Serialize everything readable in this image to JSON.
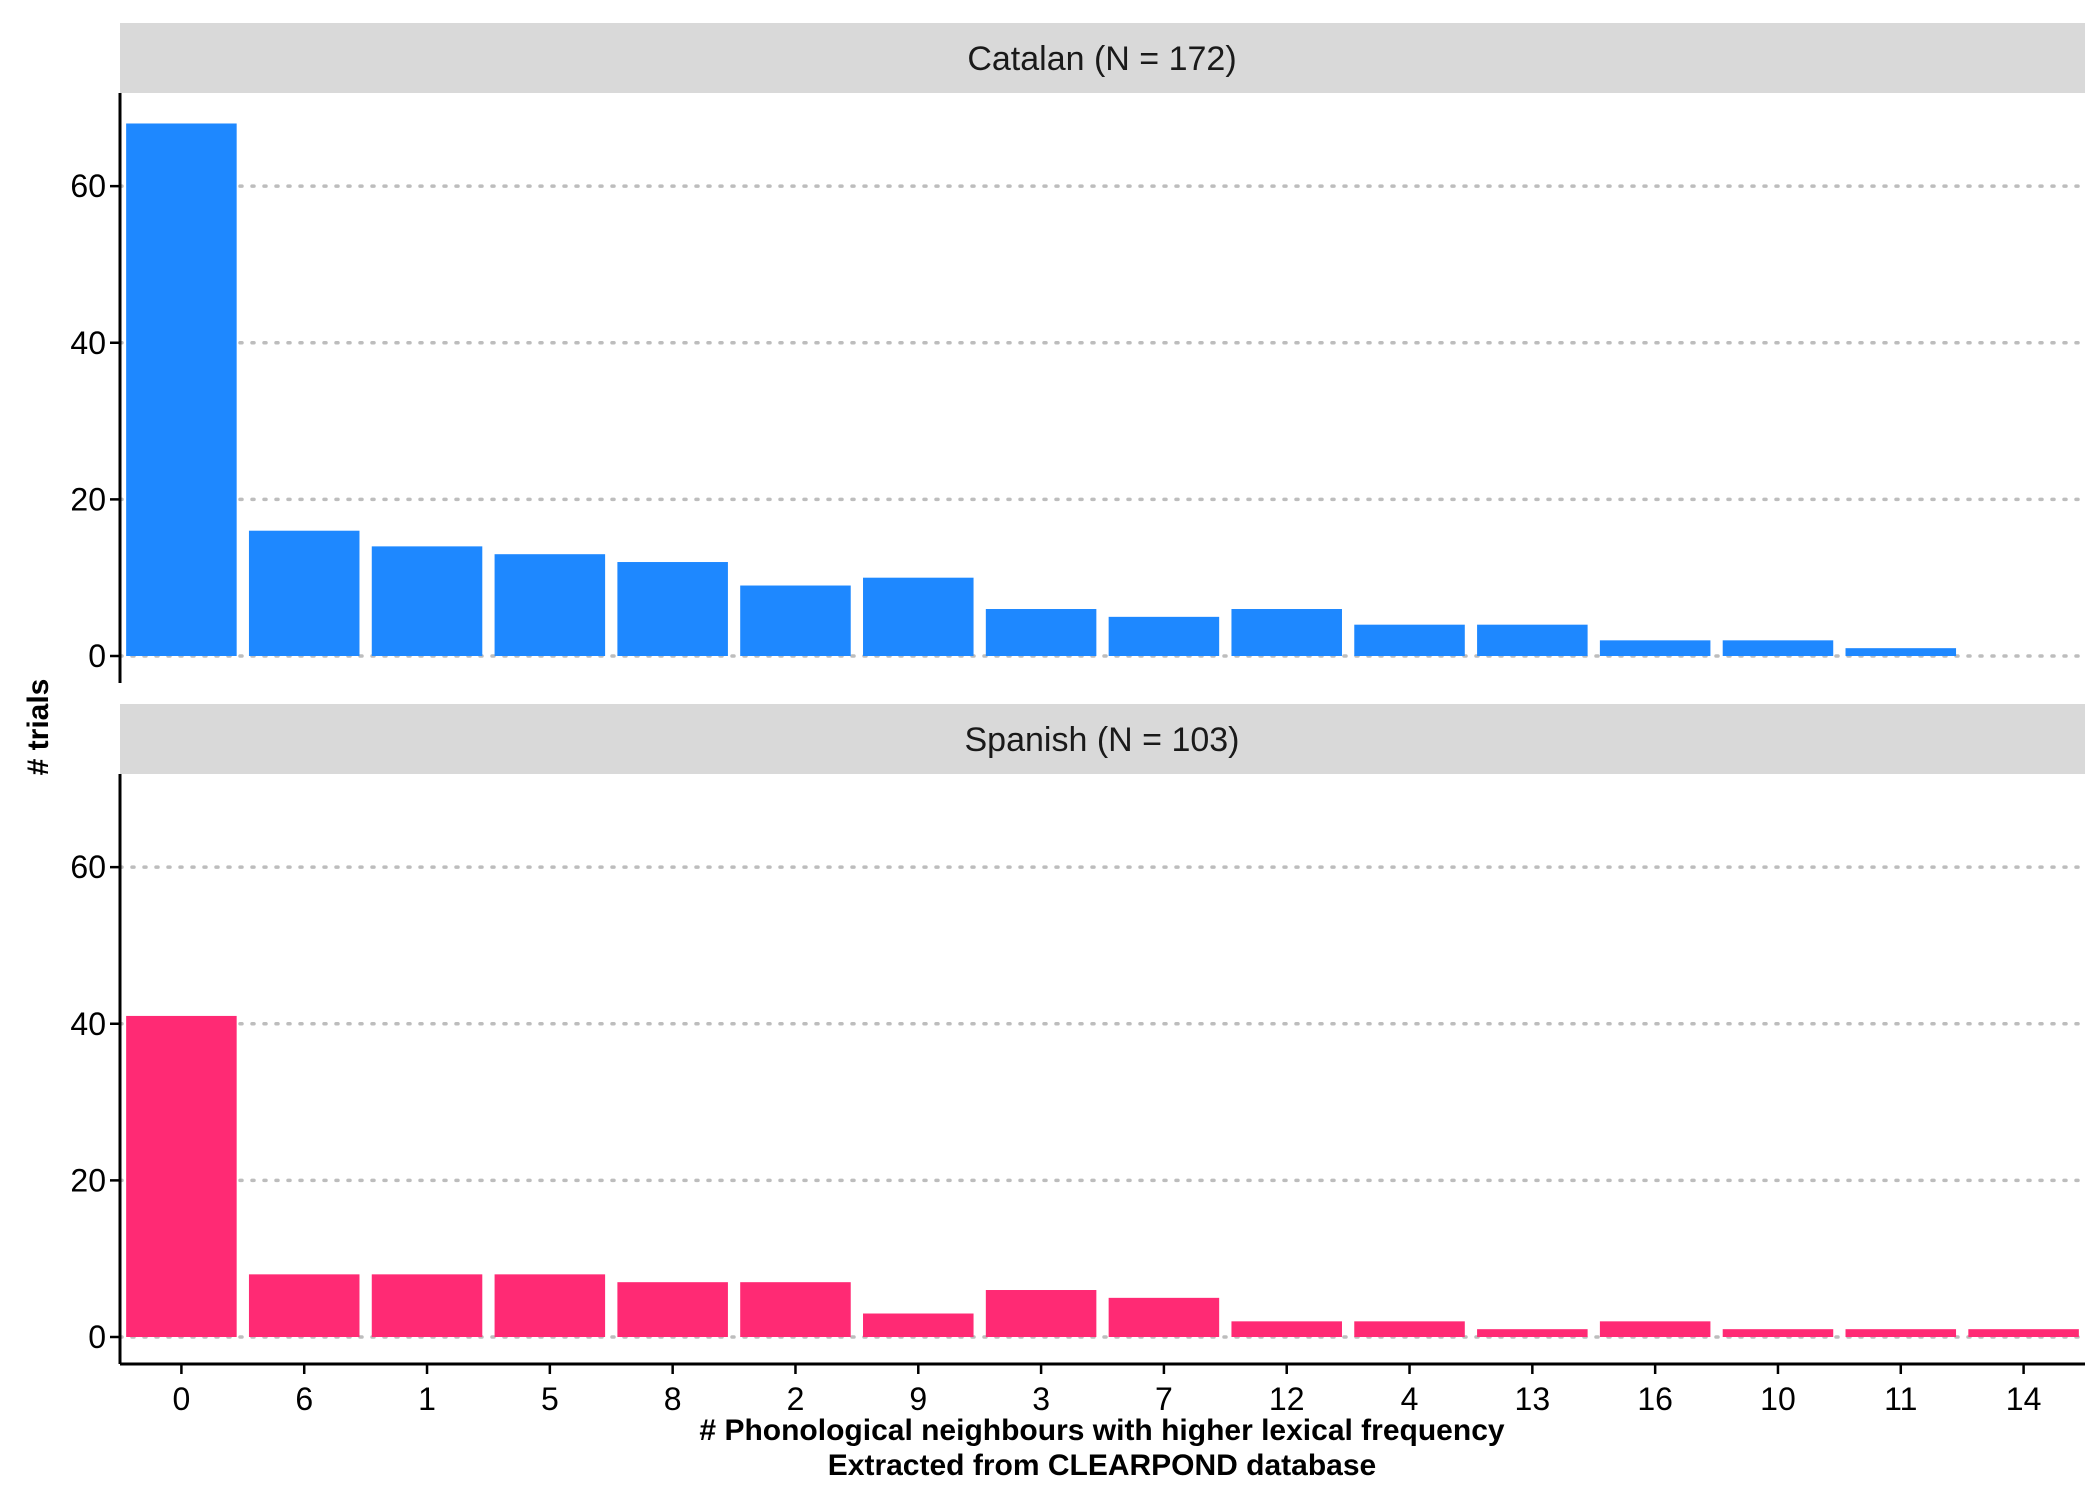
{
  "chart_data": {
    "type": "bar",
    "categories": [
      "0",
      "6",
      "1",
      "5",
      "8",
      "2",
      "9",
      "3",
      "7",
      "12",
      "4",
      "13",
      "16",
      "10",
      "11",
      "14"
    ],
    "xlabel": "# Phonological neighbours with higher lexical frequency",
    "xlabel_line2": "Extracted from CLEARPOND database",
    "ylabel": "# trials",
    "ylim": [
      0,
      71
    ],
    "yticks": [
      0,
      20,
      40,
      60
    ],
    "grid": "horizontal dotted",
    "panels": [
      {
        "title": "Catalan (N = 172)",
        "color": "#1E88FF",
        "values": [
          68,
          16,
          14,
          13,
          12,
          9,
          10,
          6,
          5,
          6,
          4,
          4,
          2,
          2,
          1,
          0
        ]
      },
      {
        "title": "Spanish (N = 103)",
        "color": "#FF2A74",
        "values": [
          41,
          8,
          8,
          8,
          7,
          7,
          3,
          6,
          5,
          2,
          2,
          1,
          2,
          1,
          1,
          1
        ]
      }
    ]
  }
}
